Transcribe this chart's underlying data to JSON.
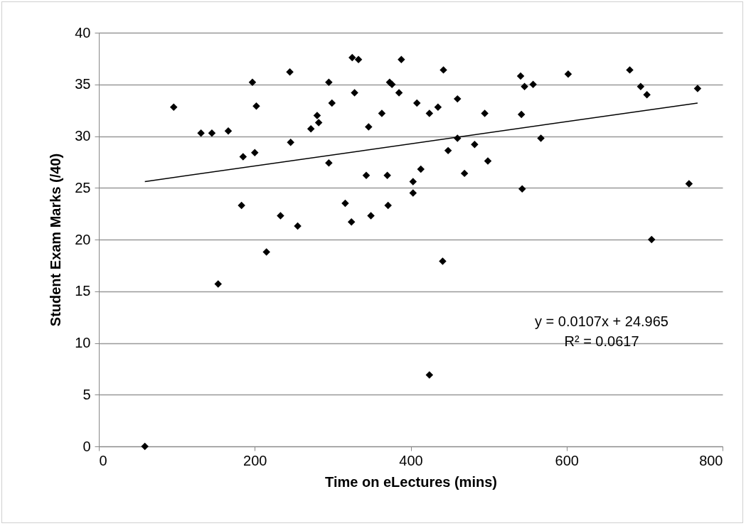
{
  "chart_data": {
    "type": "scatter",
    "xlabel": "Time on eLectures (mins)",
    "ylabel": "Student Exam Marks (/40)",
    "xlim": [
      0,
      800
    ],
    "xticks": [
      0,
      200,
      400,
      600,
      800
    ],
    "ylim": [
      0,
      40
    ],
    "yticks": [
      0,
      5,
      10,
      15,
      20,
      25,
      30,
      35,
      40
    ],
    "grid": "y",
    "annotations": [
      "y = 0.0107x + 24.965",
      "R² = 0.0617"
    ],
    "series": [
      {
        "marker": "diamond",
        "color": "#000000",
        "x": [
          59,
          96,
          131,
          145,
          153,
          166,
          183,
          185,
          197,
          200,
          202,
          215,
          233,
          245,
          246,
          255,
          272,
          280,
          282,
          295,
          295,
          299,
          316,
          325,
          324,
          328,
          333,
          343,
          346,
          349,
          363,
          370,
          371,
          373,
          376,
          385,
          388,
          403,
          403,
          408,
          413,
          424,
          424,
          435,
          441,
          442,
          448,
          460,
          460,
          469,
          482,
          495,
          499,
          541,
          542,
          543,
          546,
          557,
          567,
          602,
          681,
          695,
          703,
          709,
          757,
          768
        ],
        "values": [
          0,
          32.8,
          30.3,
          30.3,
          15.7,
          30.5,
          23.3,
          28,
          35.2,
          28.4,
          32.9,
          18.8,
          22.3,
          36.2,
          29.4,
          21.3,
          30.7,
          32,
          31.3,
          35.2,
          27.4,
          33.2,
          23.5,
          37.6,
          21.7,
          34.2,
          37.4,
          26.2,
          30.9,
          22.3,
          32.2,
          26.2,
          23.3,
          35.2,
          35,
          34.2,
          37.4,
          25.6,
          24.5,
          33.2,
          26.8,
          32.2,
          6.9,
          32.8,
          17.9,
          36.4,
          28.6,
          33.6,
          29.8,
          26.4,
          29.2,
          32.2,
          27.6,
          35.8,
          32.1,
          24.9,
          34.8,
          35,
          29.8,
          36,
          36.4,
          34.8,
          34,
          20,
          25.4,
          34.6
        ]
      },
      {
        "type": "line",
        "marker": "none",
        "color": "#000000",
        "x": [
          59,
          768
        ],
        "values": [
          25.6,
          33.2
        ]
      }
    ]
  }
}
